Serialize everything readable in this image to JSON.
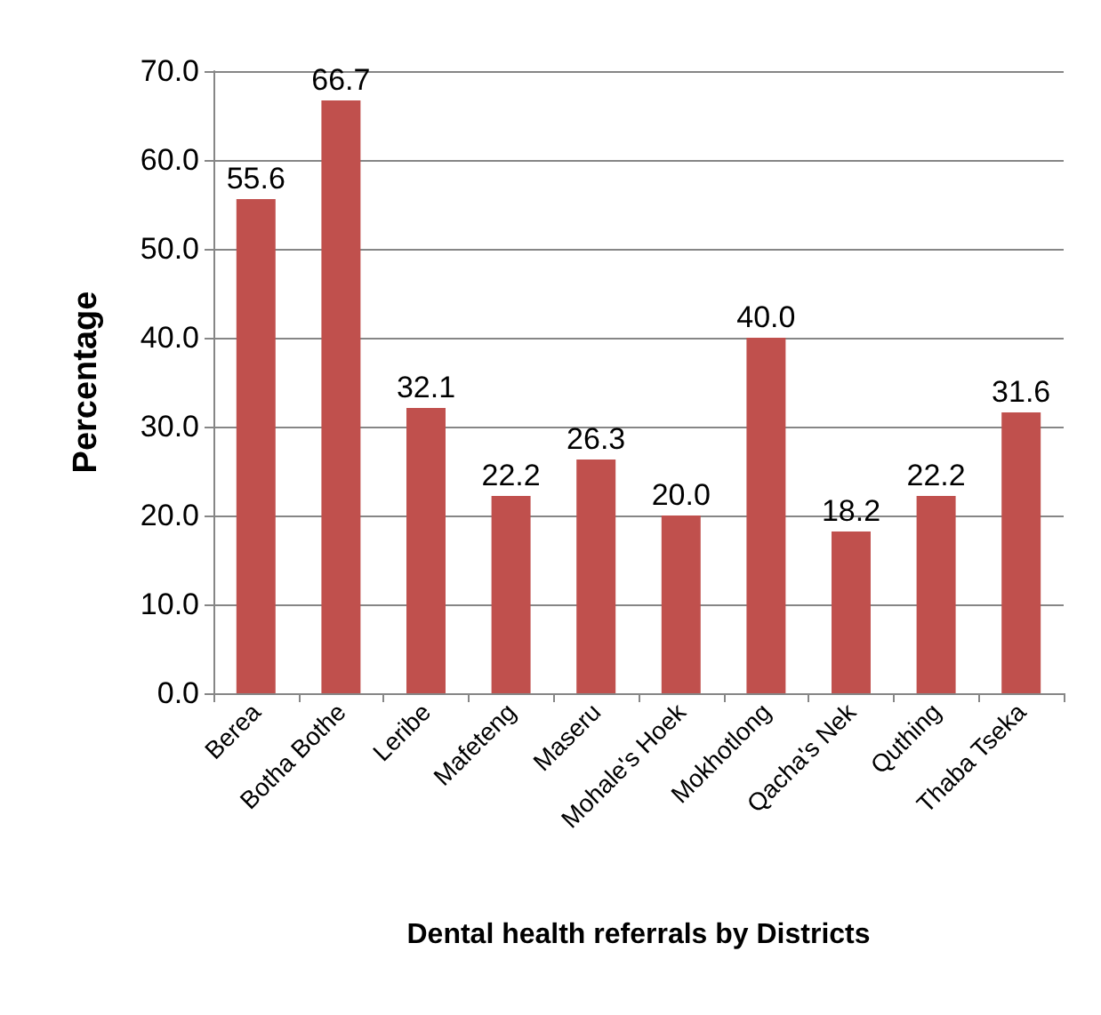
{
  "chart_data": {
    "type": "bar",
    "xlabel": "Dental health referrals by Districts",
    "ylabel": "Percentage",
    "categories": [
      "Berea",
      "Botha Bothe",
      "Leribe",
      "Mafeteng",
      "Maseru",
      "Mohale's Hoek",
      "Mokhotlong",
      "Qacha's Nek",
      "Quthing",
      "Thaba Tseka"
    ],
    "values": [
      55.6,
      66.7,
      32.1,
      22.2,
      26.3,
      20.0,
      40.0,
      18.2,
      22.2,
      31.6
    ],
    "value_labels": [
      "55.6",
      "66.7",
      "32.1",
      "22.2",
      "26.3",
      "20.0",
      "40.0",
      "18.2",
      "22.2",
      "31.6"
    ],
    "color": "#c0504d",
    "ylim": [
      0,
      70
    ],
    "yticks": [
      {
        "value": 0,
        "label": "0.0"
      },
      {
        "value": 10,
        "label": "10.0"
      },
      {
        "value": 20,
        "label": "20.0"
      },
      {
        "value": 30,
        "label": "30.0"
      },
      {
        "value": 40,
        "label": "40.0"
      },
      {
        "value": 50,
        "label": "50.0"
      },
      {
        "value": 60,
        "label": "60.0"
      },
      {
        "value": 70,
        "label": "70.0"
      }
    ],
    "grid": "y"
  }
}
